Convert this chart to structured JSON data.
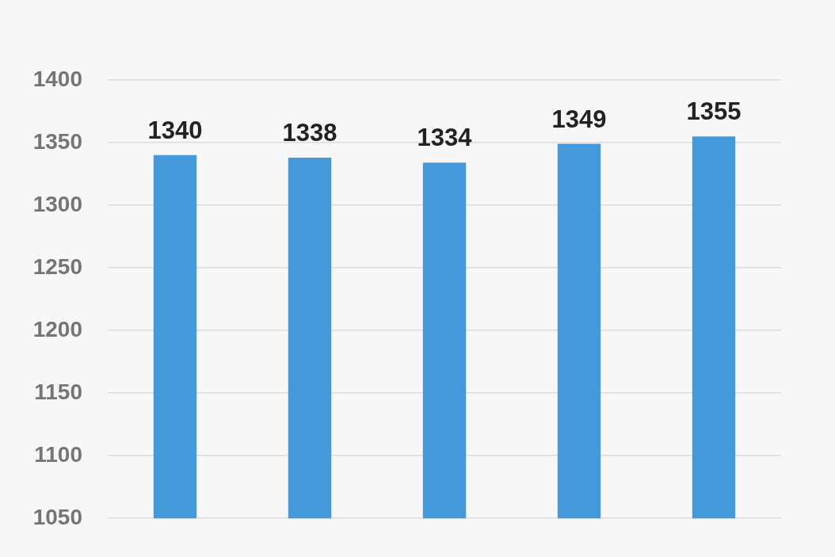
{
  "chart_data": {
    "type": "bar",
    "categories": [
      null,
      null,
      null,
      null,
      null
    ],
    "series": [
      {
        "color": "#4499da",
        "values": [
          1340,
          1338,
          1334,
          1349,
          1355
        ]
      }
    ],
    "ylim": [
      1050,
      1400
    ],
    "yticks": [
      1050,
      1100,
      1150,
      1200,
      1250,
      1300,
      1350,
      1400
    ],
    "grid": "y",
    "data_labels": true,
    "tick_labels": "y",
    "legend": false
  }
}
